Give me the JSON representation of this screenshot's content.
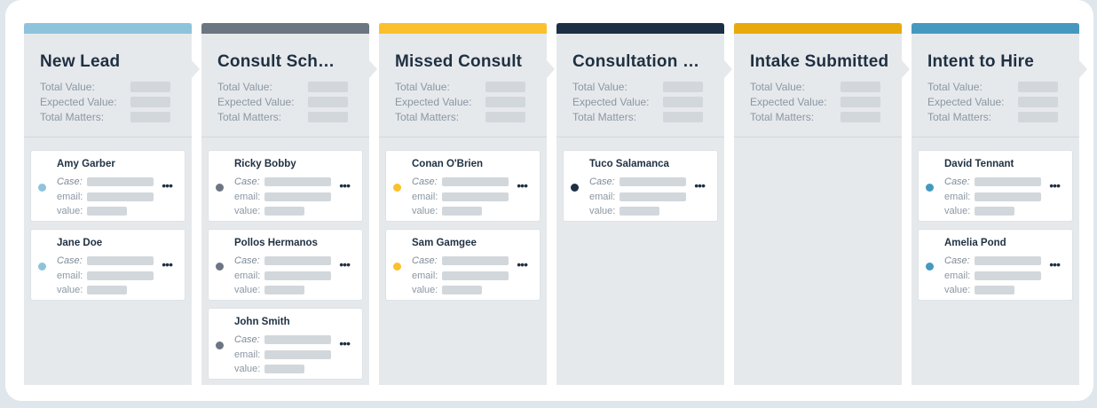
{
  "stat_labels": {
    "total_value": "Total Value:",
    "expected_value": "Expected Value:",
    "total_matters": "Total Matters:"
  },
  "card_labels": {
    "case": "Case:",
    "email": "email:",
    "value": "value:"
  },
  "more_glyph": "•••",
  "columns": [
    {
      "title": "New Lead",
      "color": "#8ec3dc",
      "cards": [
        {
          "name": "Amy Garber",
          "dot_color": "#8ec3dc"
        },
        {
          "name": "Jane Doe",
          "dot_color": "#8ec3dc"
        }
      ]
    },
    {
      "title": "Consult Sch…",
      "color": "#6b7682",
      "cards": [
        {
          "name": "Ricky Bobby",
          "dot_color": "#6b7682"
        },
        {
          "name": "Pollos Hermanos",
          "dot_color": "#6b7682"
        },
        {
          "name": "John Smith",
          "dot_color": "#6b7682"
        }
      ]
    },
    {
      "title": "Missed Consult",
      "color": "#fbc02d",
      "cards": [
        {
          "name": "Conan O'Brien",
          "dot_color": "#fbc02d"
        },
        {
          "name": "Sam Gamgee",
          "dot_color": "#fbc02d"
        }
      ]
    },
    {
      "title": "Consultation …",
      "color": "#1d2f44",
      "cards": [
        {
          "name": "Tuco Salamanca",
          "dot_color": "#1d2f44"
        }
      ]
    },
    {
      "title": "Intake Submitted",
      "color": "#e8a90c",
      "cards": []
    },
    {
      "title": "Intent to Hire",
      "color": "#4599c0",
      "cards": [
        {
          "name": "David Tennant",
          "dot_color": "#4599c0"
        },
        {
          "name": "Amelia Pond",
          "dot_color": "#4599c0"
        }
      ]
    }
  ]
}
